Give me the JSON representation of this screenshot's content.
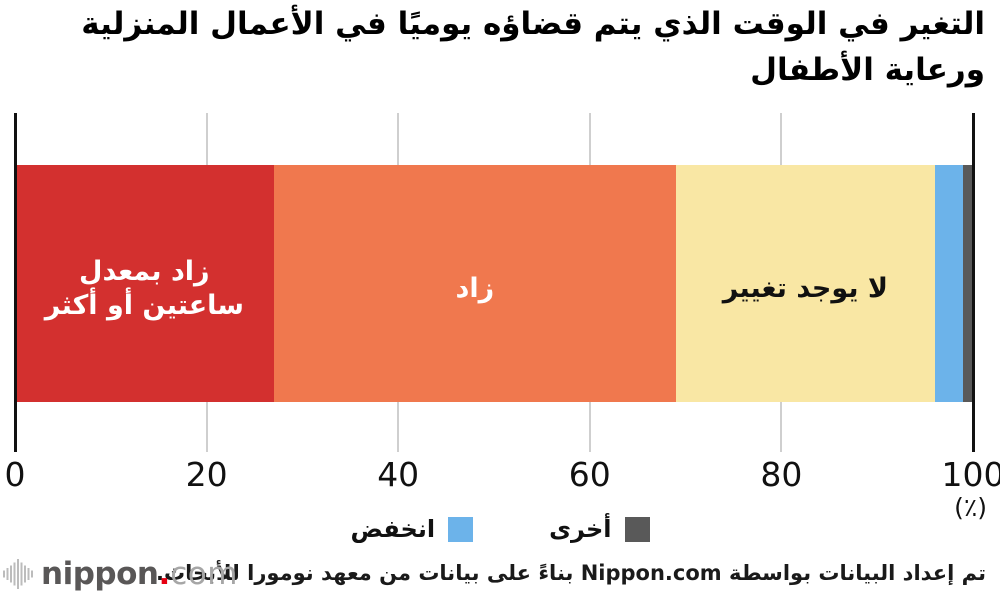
{
  "chart_data": {
    "type": "bar",
    "orientation": "horizontal_stacked",
    "title": "التغير في الوقت الذي يتم قضاؤه يوميًا في الأعمال المنزلية\nورعاية الأطفال",
    "unit_label": "(٪)",
    "xlim": [
      0,
      100
    ],
    "x_ticks": [
      "0",
      "20",
      "40",
      "60",
      "80",
      "100"
    ],
    "grid": true,
    "legend_position": "bottom-center",
    "categories": [
      "زاد بمعدل ساعتين أو أكثر",
      "زاد",
      "لا يوجد تغيير",
      "انخفض",
      "أخرى"
    ],
    "values": [
      27,
      42,
      27,
      3,
      1
    ],
    "segments": [
      {
        "label": "زاد بمعدل\nساعتين أو أكثر",
        "value": 27,
        "color": "#d3302f",
        "text_color": "#ffffff",
        "label_in_bar": true
      },
      {
        "label": "زاد",
        "value": 42,
        "color": "#f0784e",
        "text_color": "#ffffff",
        "label_in_bar": true
      },
      {
        "label": "لا يوجد تغيير",
        "value": 27,
        "color": "#f9e7a4",
        "text_color": "#111111",
        "label_in_bar": true
      },
      {
        "label": "انخفض",
        "value": 3,
        "color": "#6cb3ea",
        "text_color": "#111111",
        "label_in_bar": false
      },
      {
        "label": "أخرى",
        "value": 1,
        "color": "#595959",
        "text_color": "#111111",
        "label_in_bar": false
      }
    ]
  },
  "legend": {
    "items": [
      {
        "label": "أخرى",
        "color": "#595959"
      },
      {
        "label": "انخفض",
        "color": "#6cb3ea"
      }
    ]
  },
  "footer": {
    "credit": "تم إعداد البيانات بواسطة Nippon.com بناءً على بيانات من معهد نومورا للأبحاث.",
    "logo": {
      "brand": "nippon",
      "dot": ".",
      "suffix": "com",
      "icon": "soundwave-bars-icon",
      "dot_color": "#e60012",
      "brand_color": "#595757",
      "suffix_color": "#a6a6a6"
    }
  },
  "colors": {
    "axis_line": "#111111",
    "gridline": "#cfcfcf",
    "background": "#ffffff"
  }
}
